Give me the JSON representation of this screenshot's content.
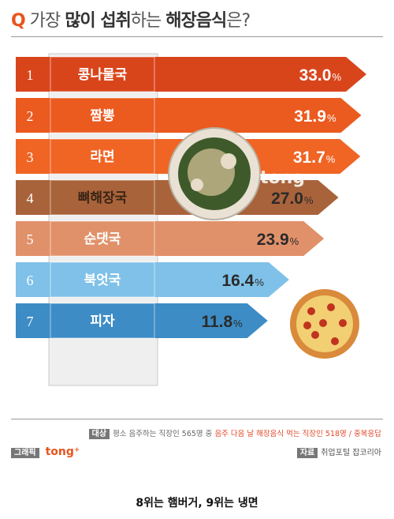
{
  "title": {
    "q": "Q",
    "pre": "가장 ",
    "b1": "많이 섭취",
    "mid": "하는 ",
    "b2": "해장음식",
    "post": "은?"
  },
  "colors": {
    "q": "#e8541c",
    "bands": [
      "#d9451b",
      "#eb5a1f",
      "#f06424",
      "#a9633b",
      "#e1916a",
      "#7fc1e8",
      "#3d8cc6"
    ]
  },
  "watermark": "tong",
  "chart_data": {
    "type": "bar",
    "orientation": "horizontal",
    "ranks": [
      "1",
      "2",
      "3",
      "4",
      "5",
      "6",
      "7"
    ],
    "categories": [
      "콩나물국",
      "짬뽕",
      "라면",
      "뼈해장국",
      "순댓국",
      "북엇국",
      "피자"
    ],
    "values": [
      33.0,
      31.9,
      31.7,
      27.0,
      23.9,
      16.4,
      11.8
    ],
    "value_labels": [
      "33.0",
      "31.9",
      "31.7",
      "27.0",
      "23.9",
      "16.4",
      "11.8"
    ],
    "unit": "%",
    "xlim": [
      0,
      33.0
    ]
  },
  "footer": {
    "note_tag": "대상",
    "note_text": "평소 음주하는 직장인 565명 중 ",
    "note_red": "음주 다음 날 해장음식 먹는 직장인 518명 / 중복응답",
    "graphic_tag": "그래픽",
    "graphic_brand": "tong⁺",
    "source_tag": "자료",
    "source_text": "취업포털 잡코리아"
  },
  "caption": "8위는 햄버거, 9위는 냉면"
}
